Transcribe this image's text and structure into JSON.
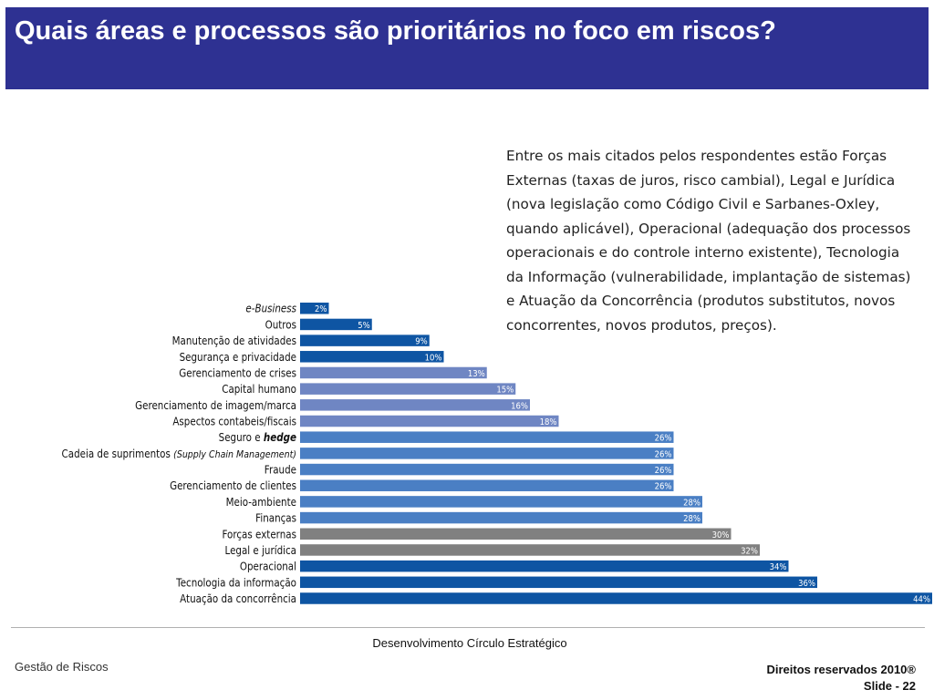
{
  "slide": {
    "title": "Quais áreas e processos são prioritários no foco em riscos?",
    "description": "Entre os mais citados pelos respondentes estão Forças Externas (taxas de juros, risco cambial), Legal e Jurídica (nova legislação como Código Civil e Sarbanes-Oxley, quando aplicável), Operacional (adequação dos processos operacionais e do controle interno existente), Tecnologia da Informação (vulnerabilidade, implantação de sistemas) e Atuação da Concorrência (produtos substitutos, novos concorrentes, novos produtos, preços)."
  },
  "footer": {
    "center": "Desenvolvimento Círculo Estratégico",
    "left": "Gestão de Riscos",
    "rights": "Direitos reservados 2010®",
    "slide_number": "Slide - 22"
  },
  "colors": {
    "title_bar": "#2e3192",
    "dark_blue": "#0e55a3",
    "light_blue": "#6f86c3",
    "mid_blue": "#4a7fc4",
    "gray": "#808080"
  },
  "chart_data": {
    "type": "bar",
    "orientation": "horizontal",
    "categories": [
      "e-Business",
      "Outros",
      "Manutenção de atividades",
      "Segurança e privacidade",
      "Gerenciamento de crises",
      "Capital humano",
      "Gerenciamento de imagem/marca",
      "Aspectos contabeis/fiscais",
      "Seguro e hedge",
      "Cadeia de suprimentos (Supply Chain Management)",
      "Fraude",
      "Gerenciamento de clientes",
      "Meio-ambiente",
      "Finanças",
      "Forças externas",
      "Legal e jurídica",
      "Operacional",
      "Tecnologia da informação",
      "Atuação da concorrência"
    ],
    "values": [
      2,
      5,
      9,
      10,
      13,
      15,
      16,
      18,
      26,
      26,
      26,
      26,
      28,
      28,
      30,
      32,
      34,
      36,
      44
    ],
    "value_labels": [
      "2%",
      "5%",
      "9%",
      "10%",
      "13%",
      "15%",
      "16%",
      "18%",
      "26%",
      "26%",
      "26%",
      "26%",
      "28%",
      "28%",
      "30%",
      "32%",
      "34%",
      "36%",
      "44%"
    ],
    "bar_colors": [
      "#0e55a3",
      "#0e55a3",
      "#0e55a3",
      "#0e55a3",
      "#6f86c3",
      "#6f86c3",
      "#6f86c3",
      "#6f86c3",
      "#4a7fc4",
      "#4a7fc4",
      "#4a7fc4",
      "#4a7fc4",
      "#4a7fc4",
      "#4a7fc4",
      "#808080",
      "#808080",
      "#0e55a3",
      "#0e55a3",
      "#0e55a3"
    ],
    "unit": "%",
    "xlim": [
      0,
      44
    ],
    "grid": false,
    "legend": "none"
  }
}
